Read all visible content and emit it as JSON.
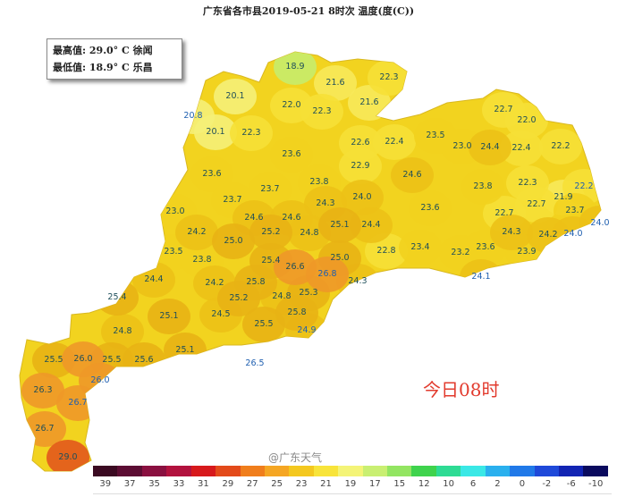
{
  "title": "广东省各市县2019-05-21 8时次 温度(度(C))",
  "info_box": {
    "max_line": "最高值: 29.0° C 徐闻",
    "min_line": "最低值: 18.9° C 乐昌"
  },
  "stamp": "今日08时",
  "watermark": "@广东天气",
  "colors": {
    "inland_label": "#1f4f5a",
    "coastal_label": "#1f5fb0",
    "stamp": "#e23b2e"
  },
  "legend": {
    "ticks": [
      "39",
      "37",
      "35",
      "33",
      "31",
      "29",
      "27",
      "25",
      "23",
      "21",
      "19",
      "17",
      "15",
      "12",
      "10",
      "6",
      "2",
      "0",
      "-2",
      "-6",
      "-10"
    ],
    "colors": [
      "#3b0a22",
      "#5c0d33",
      "#8a1040",
      "#b2123e",
      "#d7191c",
      "#e34a1a",
      "#f07e1c",
      "#f5a623",
      "#f4c81f",
      "#f8e43a",
      "#f4f477",
      "#c9ef72",
      "#93e562",
      "#3fd34d",
      "#2edb94",
      "#3ae8e6",
      "#2ab0ee",
      "#2079e8",
      "#1f49d9",
      "#1224b3",
      "#0a0a5e"
    ]
  },
  "stations": [
    {
      "v": "18.9"
    },
    {
      "v": "21.6"
    },
    {
      "v": "22.3"
    },
    {
      "v": "20.1"
    },
    {
      "v": "22.0"
    },
    {
      "v": "22.3"
    },
    {
      "v": "21.6"
    },
    {
      "v": "20.8",
      "coastal": true
    },
    {
      "v": "20.1"
    },
    {
      "v": "22.3"
    },
    {
      "v": "22.7"
    },
    {
      "v": "22.0"
    },
    {
      "v": "23.5"
    },
    {
      "v": "23.0"
    },
    {
      "v": "24.4"
    },
    {
      "v": "22.4"
    },
    {
      "v": "22.2"
    },
    {
      "v": "22.6"
    },
    {
      "v": "22.4"
    },
    {
      "v": "23.6"
    },
    {
      "v": "22.9"
    },
    {
      "v": "23.6"
    },
    {
      "v": "24.6"
    },
    {
      "v": "23.8"
    },
    {
      "v": "23.8"
    },
    {
      "v": "22.3"
    },
    {
      "v": "22.2",
      "coastal": true
    },
    {
      "v": "21.9"
    },
    {
      "v": "23.7"
    },
    {
      "v": "23.7"
    },
    {
      "v": "24.3"
    },
    {
      "v": "24.0"
    },
    {
      "v": "23.0"
    },
    {
      "v": "23.6"
    },
    {
      "v": "22.7"
    },
    {
      "v": "22.7"
    },
    {
      "v": "23.7"
    },
    {
      "v": "24.0",
      "coastal": true
    },
    {
      "v": "24.6"
    },
    {
      "v": "24.6"
    },
    {
      "v": "25.1"
    },
    {
      "v": "24.4"
    },
    {
      "v": "24.2"
    },
    {
      "v": "25.0"
    },
    {
      "v": "25.2"
    },
    {
      "v": "24.8"
    },
    {
      "v": "24.3"
    },
    {
      "v": "24.2"
    },
    {
      "v": "24.0",
      "coastal": true
    },
    {
      "v": "23.5"
    },
    {
      "v": "23.8"
    },
    {
      "v": "25.4"
    },
    {
      "v": "26.6"
    },
    {
      "v": "25.0"
    },
    {
      "v": "22.8"
    },
    {
      "v": "23.4"
    },
    {
      "v": "23.2"
    },
    {
      "v": "23.6"
    },
    {
      "v": "23.9"
    },
    {
      "v": "26.8",
      "coastal": true
    },
    {
      "v": "24.1",
      "coastal": true
    },
    {
      "v": "24.4"
    },
    {
      "v": "24.2"
    },
    {
      "v": "25.8"
    },
    {
      "v": "25.3"
    },
    {
      "v": "24.3"
    },
    {
      "v": "25.4"
    },
    {
      "v": "25.2"
    },
    {
      "v": "24.8"
    },
    {
      "v": "25.1"
    },
    {
      "v": "24.5"
    },
    {
      "v": "25.8"
    },
    {
      "v": "24.8"
    },
    {
      "v": "25.5"
    },
    {
      "v": "24.9",
      "coastal": true
    },
    {
      "v": "25.1"
    },
    {
      "v": "25.5"
    },
    {
      "v": "26.0"
    },
    {
      "v": "25.5"
    },
    {
      "v": "25.6"
    },
    {
      "v": "26.5",
      "coastal": true
    },
    {
      "v": "26.0",
      "coastal": true
    },
    {
      "v": "26.3"
    },
    {
      "v": "26.7",
      "coastal": true
    },
    {
      "v": "26.7"
    },
    {
      "v": "29.0"
    }
  ]
}
